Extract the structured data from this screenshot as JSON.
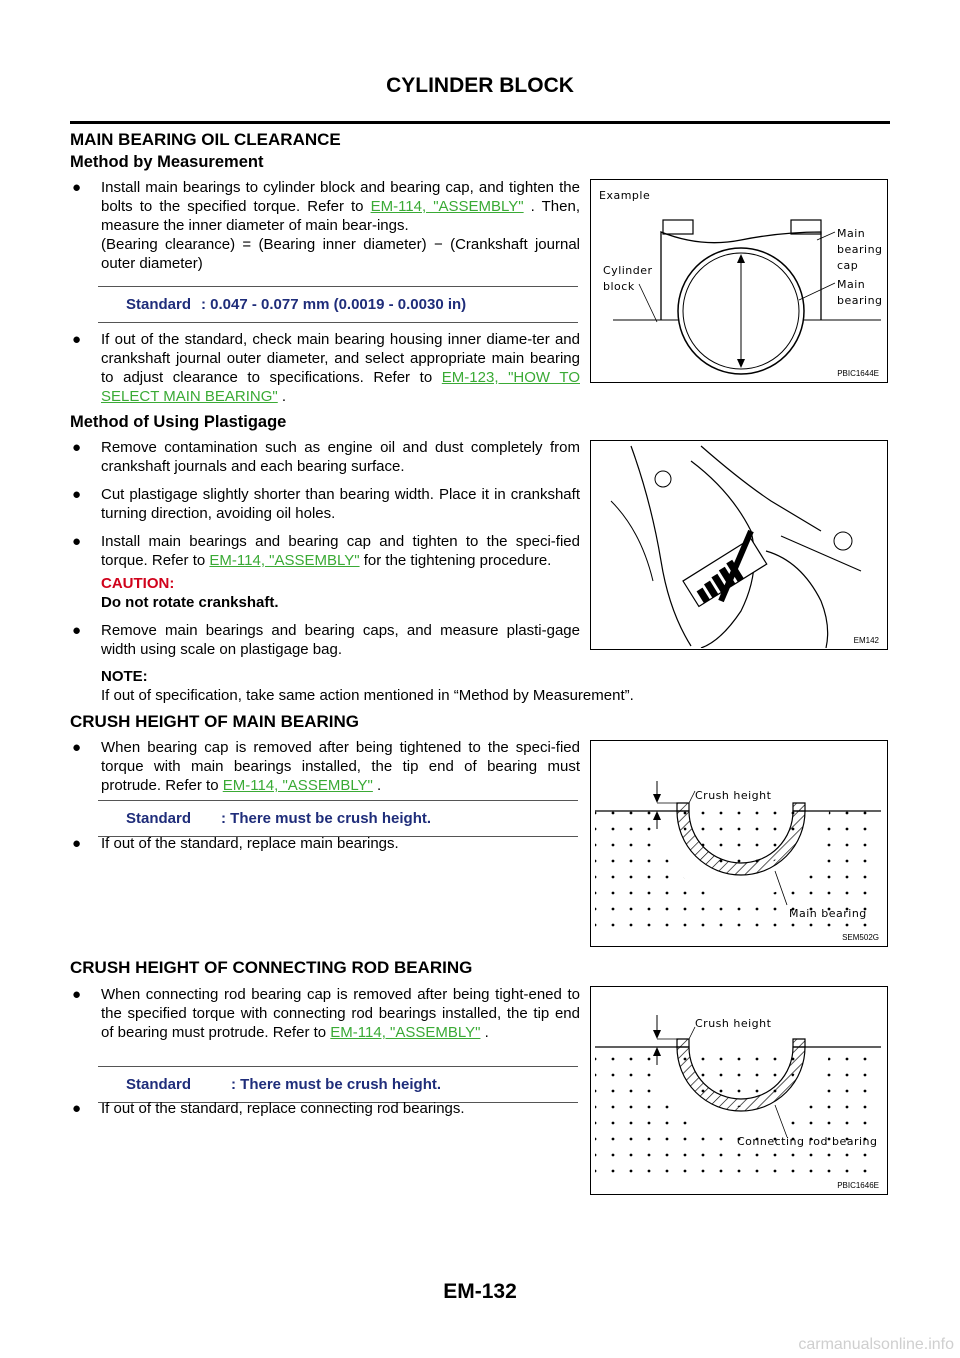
{
  "header": {
    "title": "CYLINDER BLOCK"
  },
  "footer": {
    "page_number": "EM-132"
  },
  "watermark": "carmanualsonline.info",
  "colors": {
    "link": "#3aaa35",
    "caution": "#d0021b",
    "standard": "#1f2d7a"
  },
  "sections": {
    "main_clearance": {
      "title": "MAIN BEARING OIL CLEARANCE",
      "measurement": {
        "title": "Method by Measurement",
        "b1_text": "Install main bearings to cylinder block and bearing cap, and tighten the bolts to the specified torque. Refer to ",
        "b1_link": "EM-114, \"ASSEMBLY\"",
        "b1_after": " . Then, measure the inner diameter of main bear-ings.",
        "b1_formula": "(Bearing clearance) = (Bearing inner diameter) − (Crankshaft journal outer diameter)",
        "standard_label": "Standard",
        "standard_value": ": 0.047 - 0.077 mm (0.0019 - 0.0030 in)",
        "b2_text": "If out of the standard, check main bearing housing inner diame-ter and crankshaft journal outer diameter, and select appropriate main bearing to adjust clearance to specifications. Refer to ",
        "b2_link": "EM-123, \"HOW TO SELECT MAIN BEARING\"",
        "b2_after": " ."
      },
      "plastigage": {
        "title": "Method of Using Plastigage",
        "b1": "Remove contamination such as engine oil and dust completely from crankshaft journals and each bearing surface.",
        "b2": "Cut plastigage slightly shorter than bearing width. Place it in crankshaft turning direction, avoiding oil holes.",
        "b3_text": "Install main bearings and bearing cap and tighten to the speci-fied torque. Refer to ",
        "b3_link": "EM-114, \"ASSEMBLY\"",
        "b3_after": "  for the tightening procedure.",
        "caution_label": "CAUTION:",
        "caution_text": "Do not rotate crankshaft.",
        "b4": "Remove main bearings and bearing caps, and measure plasti-gage width using scale on plastigage bag.",
        "note_label": "NOTE:",
        "note_text": "If out of specification, take same action mentioned in “Method by Measurement”."
      }
    },
    "crush_main": {
      "title": "CRUSH HEIGHT OF MAIN BEARING",
      "b1_text": "When bearing cap is removed after being tightened to the speci-fied torque with main bearings installed, the tip end of bearing must protrude. Refer to ",
      "b1_link": "EM-114, \"ASSEMBLY\"",
      "b1_after": " .",
      "standard_label": "Standard",
      "standard_value": ": There must be crush height.",
      "b2": "If out of the standard, replace main bearings."
    },
    "crush_rod": {
      "title": "CRUSH HEIGHT OF CONNECTING ROD BEARING",
      "b1_text": "When connecting rod bearing cap is removed after being tight-ened to the specified torque with connecting rod bearings installed, the tip end of bearing must protrude. Refer to ",
      "b1_link": "EM-114, \"ASSEMBLY\"",
      "b1_after": " .",
      "standard_label": "Standard",
      "standard_value": ": There must be crush height.",
      "b2": "If out of the standard, replace connecting rod bearings."
    }
  },
  "figures": {
    "fig1": {
      "example": "Example",
      "cyl1": "Cylinder",
      "cyl2": "block",
      "cap1": "Main",
      "cap2": "bearing",
      "cap3": "cap",
      "brg1": "Main",
      "brg2": "bearing",
      "id": "PBIC1644E"
    },
    "fig2": {
      "id": "EM142"
    },
    "fig3": {
      "crush": "Crush height",
      "bearing": "Main bearing",
      "id": "SEM502G"
    },
    "fig4": {
      "crush": "Crush height",
      "bearing": "Connecting rod bearing",
      "id": "PBIC1646E"
    }
  }
}
